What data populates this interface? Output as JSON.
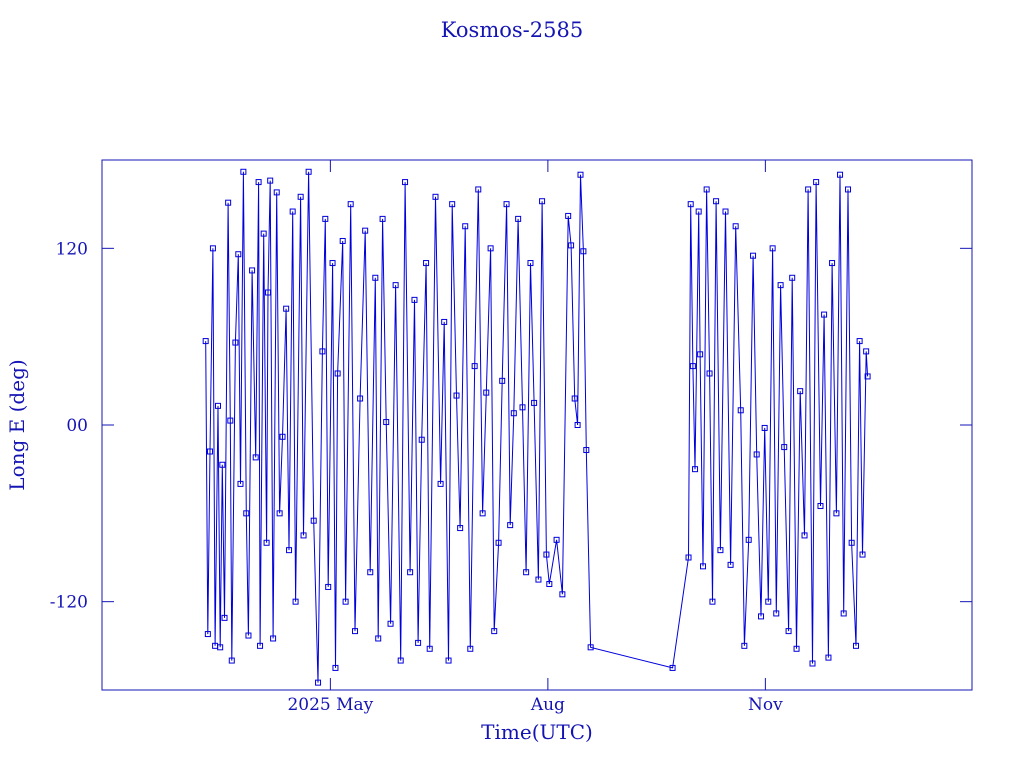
{
  "chart_data": {
    "type": "line",
    "title": "Kosmos-2585",
    "x_label": "Time(UTC)",
    "y_label": "Long E (deg)",
    "xlim": [
      1.85,
      13.85
    ],
    "xticks": [
      {
        "value": 5,
        "label": "2025 May"
      },
      {
        "value": 8,
        "label": "Aug"
      },
      {
        "value": 11,
        "label": "Nov"
      }
    ],
    "ylim": [
      -180,
      180
    ],
    "yticks": [
      {
        "value": -120,
        "label": "-120"
      },
      {
        "value": 0,
        "label": "00"
      },
      {
        "value": 120,
        "label": "120"
      }
    ],
    "x": [
      3.28,
      3.31,
      3.34,
      3.38,
      3.41,
      3.45,
      3.48,
      3.51,
      3.54,
      3.59,
      3.62,
      3.64,
      3.69,
      3.73,
      3.76,
      3.8,
      3.84,
      3.87,
      3.92,
      3.97,
      4.01,
      4.03,
      4.08,
      4.12,
      4.14,
      4.17,
      4.21,
      4.26,
      4.3,
      4.34,
      4.39,
      4.43,
      4.48,
      4.52,
      4.59,
      4.63,
      4.7,
      4.77,
      4.83,
      4.89,
      4.93,
      4.97,
      5.03,
      5.07,
      5.1,
      5.17,
      5.21,
      5.28,
      5.34,
      5.41,
      5.48,
      5.55,
      5.62,
      5.66,
      5.72,
      5.77,
      5.83,
      5.9,
      5.97,
      6.03,
      6.1,
      6.16,
      6.21,
      6.26,
      6.32,
      6.37,
      6.45,
      6.52,
      6.57,
      6.63,
      6.68,
      6.74,
      6.79,
      6.86,
      6.93,
      6.99,
      7.04,
      7.1,
      7.15,
      7.21,
      7.26,
      7.32,
      7.37,
      7.43,
      7.48,
      7.53,
      7.59,
      7.65,
      7.7,
      7.76,
      7.81,
      7.87,
      7.92,
      7.98,
      8.02,
      8.12,
      8.2,
      8.28,
      8.32,
      8.37,
      8.41,
      8.45,
      8.49,
      8.53,
      8.59,
      9.72,
      9.94,
      9.97,
      10.0,
      10.03,
      10.08,
      10.1,
      10.14,
      10.19,
      10.23,
      10.27,
      10.32,
      10.38,
      10.45,
      10.52,
      10.59,
      10.66,
      10.71,
      10.77,
      10.83,
      10.88,
      10.94,
      10.99,
      11.04,
      11.1,
      11.15,
      11.21,
      11.26,
      11.32,
      11.37,
      11.43,
      11.48,
      11.54,
      11.59,
      11.65,
      11.7,
      11.76,
      11.81,
      11.87,
      11.92,
      11.98,
      12.03,
      12.08,
      12.14,
      12.19,
      12.25,
      12.3,
      12.34,
      12.39,
      12.41
    ],
    "series": [
      {
        "color": "#0000dc",
        "values": [
          57,
          -142,
          -18,
          120,
          -150,
          13,
          -151,
          -27,
          -131,
          151,
          3,
          -160,
          56,
          116,
          -40,
          172,
          -60,
          -143,
          105,
          -22,
          165,
          -150,
          130,
          -80,
          90,
          166,
          -145,
          158,
          -60,
          -8,
          79,
          -85,
          145,
          -120,
          155,
          -75,
          172,
          -65,
          -175,
          50,
          140,
          -110,
          110,
          -165,
          35,
          125,
          -120,
          150,
          -140,
          18,
          132,
          -100,
          100,
          -145,
          140,
          2,
          -135,
          95,
          -160,
          165,
          -100,
          85,
          -148,
          -10,
          110,
          -152,
          155,
          -40,
          70,
          -160,
          150,
          20,
          -70,
          135,
          -152,
          40,
          160,
          -60,
          22,
          120,
          -140,
          -80,
          30,
          150,
          -68,
          8,
          140,
          12,
          -100,
          110,
          15,
          -105,
          152,
          -88,
          -108,
          -78,
          -115,
          142,
          122,
          18,
          0,
          170,
          118,
          -17,
          -151,
          -165,
          -90,
          150,
          40,
          -30,
          145,
          48,
          -96,
          160,
          35,
          -120,
          152,
          -85,
          145,
          -95,
          135,
          10,
          -150,
          -78,
          115,
          -20,
          -130,
          -2,
          -120,
          120,
          -128,
          95,
          -15,
          -140,
          100,
          -152,
          23,
          -75,
          160,
          -162,
          165,
          -55,
          75,
          -158,
          110,
          -60,
          170,
          -128,
          160,
          -80,
          -150,
          57,
          -88,
          50,
          33
        ]
      }
    ]
  }
}
